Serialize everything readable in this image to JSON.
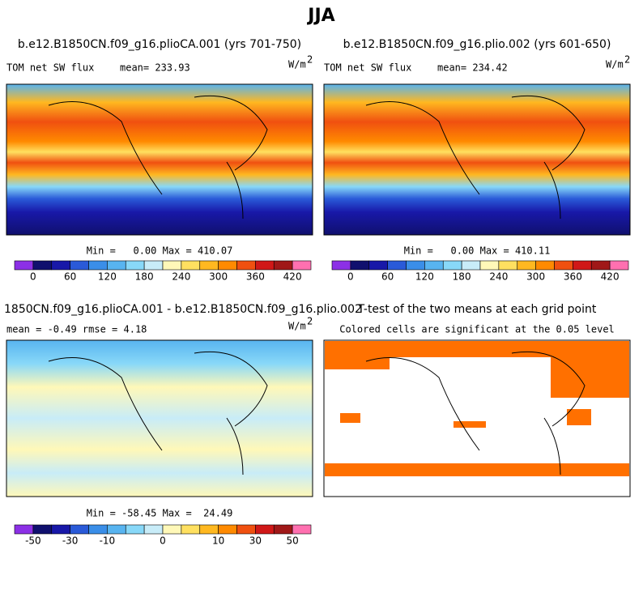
{
  "title": "JJA",
  "panels": [
    {
      "title": "b.e12.B1850CN.f09_g16.plioCA.001 (yrs 701-750)",
      "variable": "TOM net SW flux",
      "stats": "mean= 233.93",
      "units": "W/m",
      "units_sup": "2",
      "minmax": "Min =   0.00 Max = 410.07"
    },
    {
      "title": "b.e12.B1850CN.f09_g16.plio.002 (yrs 601-650)",
      "variable": "TOM net SW flux",
      "stats": "mean= 234.42",
      "units": "W/m",
      "units_sup": "2",
      "minmax": "Min =   0.00 Max = 410.11"
    },
    {
      "title": "1850CN.f09_g16.plioCA.001 - b.e12.B1850CN.f09_g16.plio.002",
      "stats": "mean =  -0.49    rmse =   4.18",
      "units": "W/m",
      "units_sup": "2",
      "minmax": "Min = -58.45 Max =  24.49"
    },
    {
      "title": "T-test of the two means at each grid point",
      "stats": "Colored cells are significant at the 0.05 level"
    }
  ],
  "colorbars": [
    {
      "labels": [
        0,
        60,
        120,
        180,
        240,
        300,
        360,
        420
      ]
    },
    {
      "labels": [
        0,
        60,
        120,
        180,
        240,
        300,
        360,
        420
      ]
    },
    {
      "labels": [
        -50,
        -30,
        -10,
        0,
        10,
        30,
        50
      ]
    }
  ],
  "colorbar_colors": [
    "#8c30e6",
    "#10106e",
    "#1818a8",
    "#2a5ad8",
    "#3a8ee8",
    "#58b4f0",
    "#88d8f8",
    "#c8ecf8",
    "#fff8b8",
    "#ffe060",
    "#ffb820",
    "#ff8a00",
    "#f05010",
    "#d01818",
    "#a01818",
    "#ff70b0"
  ]
}
